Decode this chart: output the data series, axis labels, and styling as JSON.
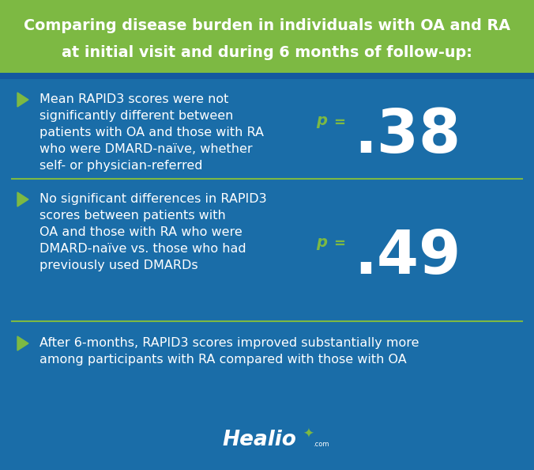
{
  "title_line1": "Comparing disease burden in individuals with OA and RA",
  "title_line2": "at initial visit and during 6 months of follow-up:",
  "title_bg": "#7db943",
  "title_text_color": "#ffffff",
  "body_bg": "#1a6da8",
  "separator_color": "#7db943",
  "bullet_color": "#7db943",
  "p_italic_color": "#7db943",
  "p_value_color": "#ffffff",
  "body_text_color": "#ffffff",
  "block1_text": "Mean RAPID3 scores were not\nsignificantly different between\npatients with OA and those with RA\nwho were DMARD-naïve, whether\nself- or physician-referred",
  "block1_val": ".38",
  "block2_text": "No significant differences in RAPID3\nscores between patients with\nOA and those with RA who were\nDMARD-naïve vs. those who had\npreviously used DMARDs",
  "block2_val": ".49",
  "block3_text": "After 6-months, RAPID3 scores improved substantially more\namong participants with RA compared with those with OA",
  "footer_logo_color": "#ffffff",
  "stripe_color": "#1558a0",
  "fig_width": 6.76,
  "fig_height": 5.94,
  "dpi": 100
}
